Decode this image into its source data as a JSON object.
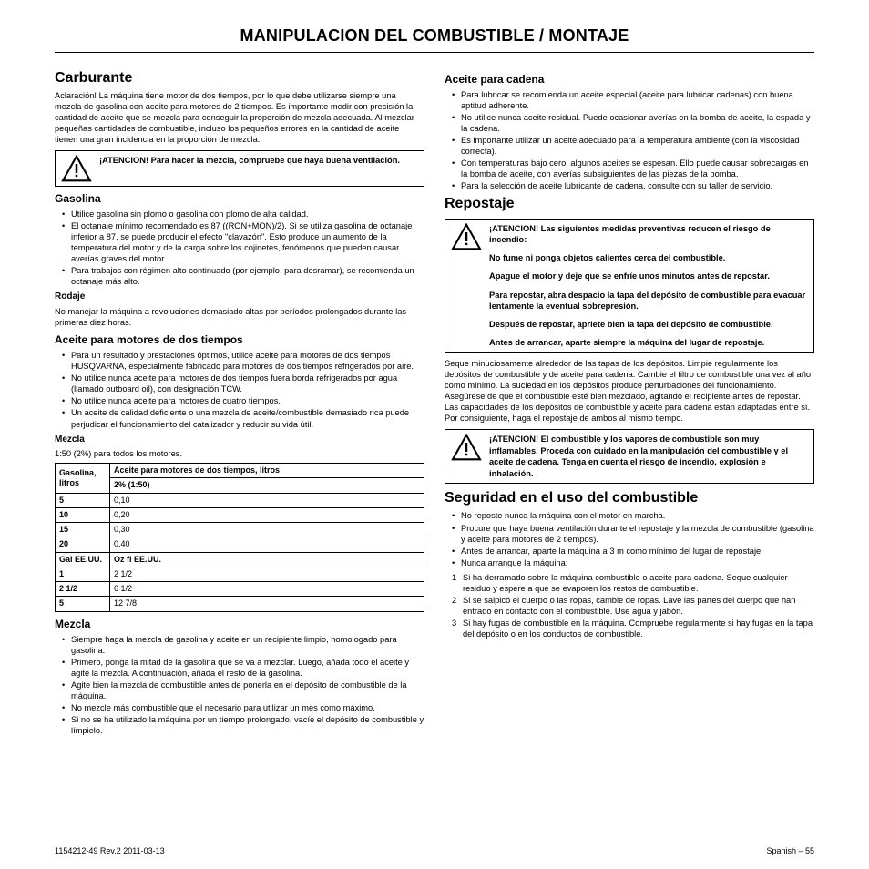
{
  "header": "MANIPULACION DEL COMBUSTIBLE / MONTAJE",
  "left": {
    "h2_carburante": "Carburante",
    "p_carburante": "Aclaración! La máquina tiene motor de dos tiempos, por lo que debe utilizarse siempre una mezcla de gasolina con aceite para motores de 2 tiempos. Es importante medir con precisión la cantidad de aceite que se mezcla para conseguir la proporción de mezcla adecuada. Al mezclar pequeñas cantidades de combustible, incluso los pequeños errores en la cantidad de aceite tienen una gran incidencia en la proporción de mezcla.",
    "warn1": "¡ATENCION!  Para hacer la mezcla, compruebe que haya buena ventilación.",
    "h3_gasolina": "Gasolina",
    "gasolina_items": [
      "Utilice gasolina sin plomo o gasolina con plomo de alta calidad.",
      "El octanaje mínimo recomendado es 87 ((RON+MON)/2). Si se utiliza gasolina de octanaje inferior a 87, se puede producir el efecto \"clavazón\". Esto produce un aumento de la temperatura del motor y de la carga sobre los cojinetes, fenómenos que pueden causar averías graves del motor.",
      "Para trabajos con régimen alto continuado (por ejemplo, para desramar), se recomienda un octanaje más alto."
    ],
    "h4_rodaje": "Rodaje",
    "p_rodaje": "No manejar la máquina a revoluciones demasiado altas por períodos prolongados durante las primeras diez horas.",
    "h3_aceite2t": "Aceite para motores de dos tiempos",
    "aceite2t_items": [
      "Para un resultado y prestaciones óptimos, utilice aceite para motores de dos tiempos HUSQVARNA, especialmente fabricado para motores de dos tiempos refrigerados por aire.",
      "No utilice nunca aceite para motores de dos tiempos fuera borda refrigerados por agua (llamado outboard oil), con designación TCW.",
      "No utilice nunca aceite para motores de cuatro tiempos.",
      "Un aceite de calidad deficiente o una mezcla de aceite/combustible demasiado rica puede perjudicar el funcionamiento del catalizador y reducir su vida útil."
    ],
    "h4_mezcla_ratio": "Mezcla",
    "p_ratio": "1:50 (2%) para todos los motores.",
    "table": {
      "headers": [
        "Gasolina, litros",
        "Aceite para motores de dos tiempos, litros"
      ],
      "subheader": "2% (1:50)",
      "rows": [
        [
          "5",
          "0,10"
        ],
        [
          "10",
          "0,20"
        ],
        [
          "15",
          "0,30"
        ],
        [
          "20",
          "0,40"
        ],
        [
          "Gal EE.UU.",
          "Oz fl EE.UU."
        ],
        [
          "1",
          "2 1/2"
        ],
        [
          "2 1/2",
          "6 1/2"
        ],
        [
          "5",
          "12 7/8"
        ]
      ]
    },
    "h3_mezcla": "Mezcla",
    "mezcla_items": [
      "Siempre haga la mezcla de gasolina y aceite en un recipiente limpio, homologado para gasolina.",
      "Primero, ponga la mitad de la gasolina que se va a mezclar. Luego, añada todo el aceite y agite la mezcla. A continuación, añada el resto de la gasolina.",
      "Agite bien la mezcla de combustible antes de ponerla en el depósito de combustible de la máquina.",
      "No mezcle más combustible que el necesario para utilizar un mes como máximo.",
      "Si no se ha utilizado la máquina por un tiempo prolongado, vacíe el depósito de combustible y límpielo."
    ]
  },
  "right": {
    "h3_cadena": "Aceite para cadena",
    "cadena_items": [
      "Para lubricar se recomienda un aceite especial (aceite para lubricar cadenas) con buena aptitud adherente.",
      "No utilice nunca aceite residual. Puede ocasionar averías en la bomba de aceite, la espada y la cadena.",
      "Es importante utilizar un aceite adecuado para la temperatura ambiente (con la viscosidad correcta).",
      "Con temperaturas bajo cero, algunos aceites se espesan. Ello puede causar sobrecargas en la bomba de aceite, con averías subsiguientes de las piezas de la bomba.",
      "Para la selección de aceite lubricante de cadena, consulte con su taller de servicio."
    ],
    "h2_repostaje": "Repostaje",
    "warn2": [
      "¡ATENCION!  Las siguientes medidas preventivas reducen el riesgo de incendio:",
      "No fume ni ponga objetos calientes cerca del combustible.",
      "Apague el motor y deje que se enfríe unos minutos antes de repostar.",
      "Para repostar, abra despacio la tapa del depósito de combustible para evacuar lentamente la eventual sobrepresión.",
      "Después de repostar, apriete bien la tapa del depósito de combustible.",
      "Antes de arrancar, aparte siempre la máquina del lugar de repostaje."
    ],
    "p_repostaje": "Seque minuciosamente alrededor de las tapas de los depósitos. Limpie regularmente los depósitos de combustible y de aceite para cadena. Cambie el filtro de combustible una vez al año como mínimo. La suciedad en los depósitos produce perturbaciones del funcionamiento. Asegúrese de que el combustible esté bien mezclado, agitando el recipiente antes de repostar. Las capacidades de los depósitos de combustible y aceite para cadena están adaptadas entre sí. Por consiguiente, haga el repostaje de ambos al mismo tiempo.",
    "warn3": "¡ATENCION!  El combustible y los vapores de combustible son muy inflamables. Proceda con cuidado en la manipulación del combustible y el aceite de cadena. Tenga en cuenta el riesgo de incendio, explosión e inhalación.",
    "h2_seguridad": "Seguridad en el uso del combustible",
    "seguridad_items": [
      "No reposte nunca la máquina con el motor en marcha.",
      "Procure que haya buena ventilación durante el repostaje y la mezcla de combustible (gasolina y aceite para motores de 2 tiempos).",
      "Antes de arrancar, aparte la máquina a 3 m como mínimo del lugar de repostaje.",
      "Nunca arranque la máquina:"
    ],
    "seguridad_num": [
      "Si ha derramado sobre la máquina combustible o aceite para cadena. Seque cualquier residuo y espere a que se evaporen los restos de combustible.",
      "Si se salpicó el cuerpo o las ropas, cambie de ropas. Lave las partes del cuerpo que han entrado en contacto con el combustible. Use agua y jabón.",
      "Si hay fugas de combustible en la máquina. Compruebe regularmente si hay fugas en la tapa del depósito o en los conductos de combustible."
    ]
  },
  "footer": {
    "left": "1154212-49 Rev.2 2011-03-13",
    "right": "Spanish – 55"
  }
}
